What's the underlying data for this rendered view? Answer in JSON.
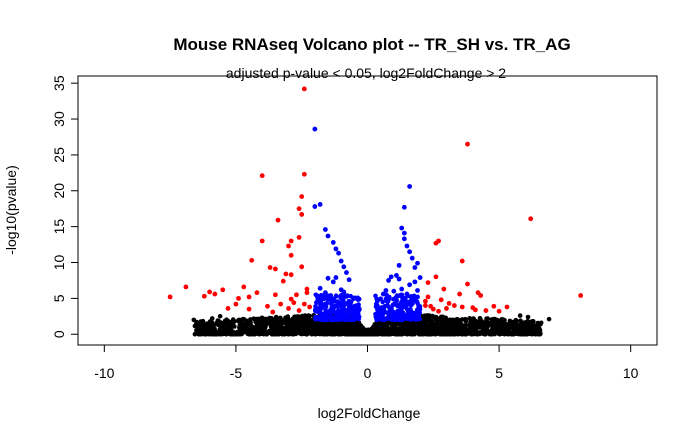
{
  "chart_data": {
    "type": "scatter",
    "title": "Mouse RNAseq Volcano plot -- TR_SH vs. TR_AG",
    "subtitle": "adjusted p-value < 0.05, log2FoldChange > 2",
    "xlabel": "log2FoldChange",
    "ylabel": "-log10(pvalue)",
    "xlim": [
      -11,
      11
    ],
    "ylim": [
      -1.5,
      36
    ],
    "x_ticks": [
      -10,
      -5,
      0,
      5,
      10
    ],
    "y_ticks": [
      0,
      5,
      10,
      15,
      20,
      25,
      30,
      35
    ],
    "grid": false,
    "legend": "none",
    "colors": {
      "black": "#000000",
      "blue": "#0000ff",
      "red": "#ff0000"
    },
    "series": [
      {
        "color": "red",
        "points": [
          [
            -2.4,
            34.2
          ],
          [
            -4.0,
            22.1
          ],
          [
            -2.4,
            22.3
          ],
          [
            -2.5,
            19.2
          ],
          [
            -2.6,
            17.5
          ],
          [
            -2.5,
            16.7
          ],
          [
            -3.4,
            15.9
          ],
          [
            -2.6,
            13.5
          ],
          [
            -2.9,
            13.0
          ],
          [
            -3.0,
            12.3
          ],
          [
            -2.9,
            11.0
          ],
          [
            -4.0,
            13.0
          ],
          [
            -4.4,
            10.3
          ],
          [
            -3.7,
            9.3
          ],
          [
            -3.5,
            9.1
          ],
          [
            -3.1,
            8.4
          ],
          [
            -2.9,
            8.3
          ],
          [
            -2.5,
            9.4
          ],
          [
            -3.2,
            7.4
          ],
          [
            -6.9,
            6.6
          ],
          [
            -7.5,
            5.2
          ],
          [
            -6.0,
            5.9
          ],
          [
            -6.2,
            5.3
          ],
          [
            -5.8,
            5.6
          ],
          [
            -5.5,
            6.2
          ],
          [
            -4.7,
            6.6
          ],
          [
            -4.9,
            5.0
          ],
          [
            -4.5,
            5.2
          ],
          [
            -4.2,
            5.8
          ],
          [
            -3.5,
            5.5
          ],
          [
            -2.7,
            5.5
          ],
          [
            -2.3,
            5.8
          ],
          [
            -2.9,
            4.9
          ],
          [
            -3.3,
            4.2
          ],
          [
            -3.8,
            3.9
          ],
          [
            -4.5,
            3.5
          ],
          [
            -5.0,
            4.2
          ],
          [
            -5.3,
            3.6
          ],
          [
            -2.4,
            4.2
          ],
          [
            -2.2,
            3.8
          ],
          [
            -2.6,
            3.3
          ],
          [
            -3.0,
            3.6
          ],
          [
            -2.8,
            4.4
          ],
          [
            -3.6,
            3.1
          ],
          [
            -2.3,
            6.3
          ],
          [
            3.8,
            26.5
          ],
          [
            6.2,
            16.1
          ],
          [
            2.7,
            13.0
          ],
          [
            2.6,
            12.7
          ],
          [
            3.6,
            10.2
          ],
          [
            2.6,
            8.0
          ],
          [
            2.3,
            7.2
          ],
          [
            3.8,
            7.0
          ],
          [
            2.9,
            6.3
          ],
          [
            3.5,
            5.6
          ],
          [
            4.2,
            5.8
          ],
          [
            4.3,
            5.4
          ],
          [
            8.1,
            5.4
          ],
          [
            2.3,
            5.2
          ],
          [
            2.8,
            4.8
          ],
          [
            3.1,
            4.3
          ],
          [
            3.3,
            4.0
          ],
          [
            3.6,
            3.8
          ],
          [
            4.0,
            3.7
          ],
          [
            4.5,
            3.3
          ],
          [
            4.8,
            3.9
          ],
          [
            5.3,
            3.8
          ],
          [
            2.2,
            4.0
          ],
          [
            2.5,
            3.5
          ],
          [
            2.4,
            3.9
          ],
          [
            5.0,
            3.2
          ],
          [
            3.0,
            3.6
          ],
          [
            2.7,
            3.2
          ],
          [
            4.1,
            3.4
          ],
          [
            2.2,
            4.6
          ]
        ]
      },
      {
        "color": "blue",
        "points": [
          [
            -2.0,
            28.6
          ],
          [
            -2.0,
            17.8
          ],
          [
            -1.8,
            18.1
          ],
          [
            -1.6,
            14.6
          ],
          [
            -1.5,
            13.7
          ],
          [
            -1.3,
            12.8
          ],
          [
            -1.2,
            11.9
          ],
          [
            -1.1,
            11.3
          ],
          [
            -1.0,
            10.2
          ],
          [
            -0.9,
            9.4
          ],
          [
            -0.8,
            8.6
          ],
          [
            -1.5,
            7.8
          ],
          [
            -1.3,
            7.3
          ],
          [
            -1.2,
            7.9
          ],
          [
            -0.7,
            7.6
          ],
          [
            -1.8,
            6.4
          ],
          [
            -1.6,
            5.8
          ],
          [
            -1.0,
            6.2
          ],
          [
            -0.9,
            5.9
          ],
          [
            -1.4,
            5.4
          ],
          [
            1.6,
            20.6
          ],
          [
            1.4,
            17.7
          ],
          [
            1.3,
            14.8
          ],
          [
            1.4,
            14.1
          ],
          [
            1.4,
            13.3
          ],
          [
            1.5,
            12.3
          ],
          [
            1.6,
            11.5
          ],
          [
            1.7,
            10.6
          ],
          [
            1.9,
            9.9
          ],
          [
            1.8,
            9.3
          ],
          [
            1.2,
            9.6
          ],
          [
            1.1,
            8.2
          ],
          [
            0.8,
            7.5
          ],
          [
            0.9,
            8.0
          ],
          [
            1.2,
            7.7
          ],
          [
            2.0,
            7.9
          ],
          [
            1.8,
            7.3
          ],
          [
            1.6,
            6.9
          ],
          [
            1.9,
            6.1
          ],
          [
            1.3,
            6.3
          ],
          [
            1.0,
            6.0
          ],
          [
            1.5,
            5.6
          ],
          [
            0.7,
            6.1
          ],
          [
            0.6,
            5.6
          ],
          [
            1.9,
            5.2
          ]
        ]
      }
    ]
  }
}
